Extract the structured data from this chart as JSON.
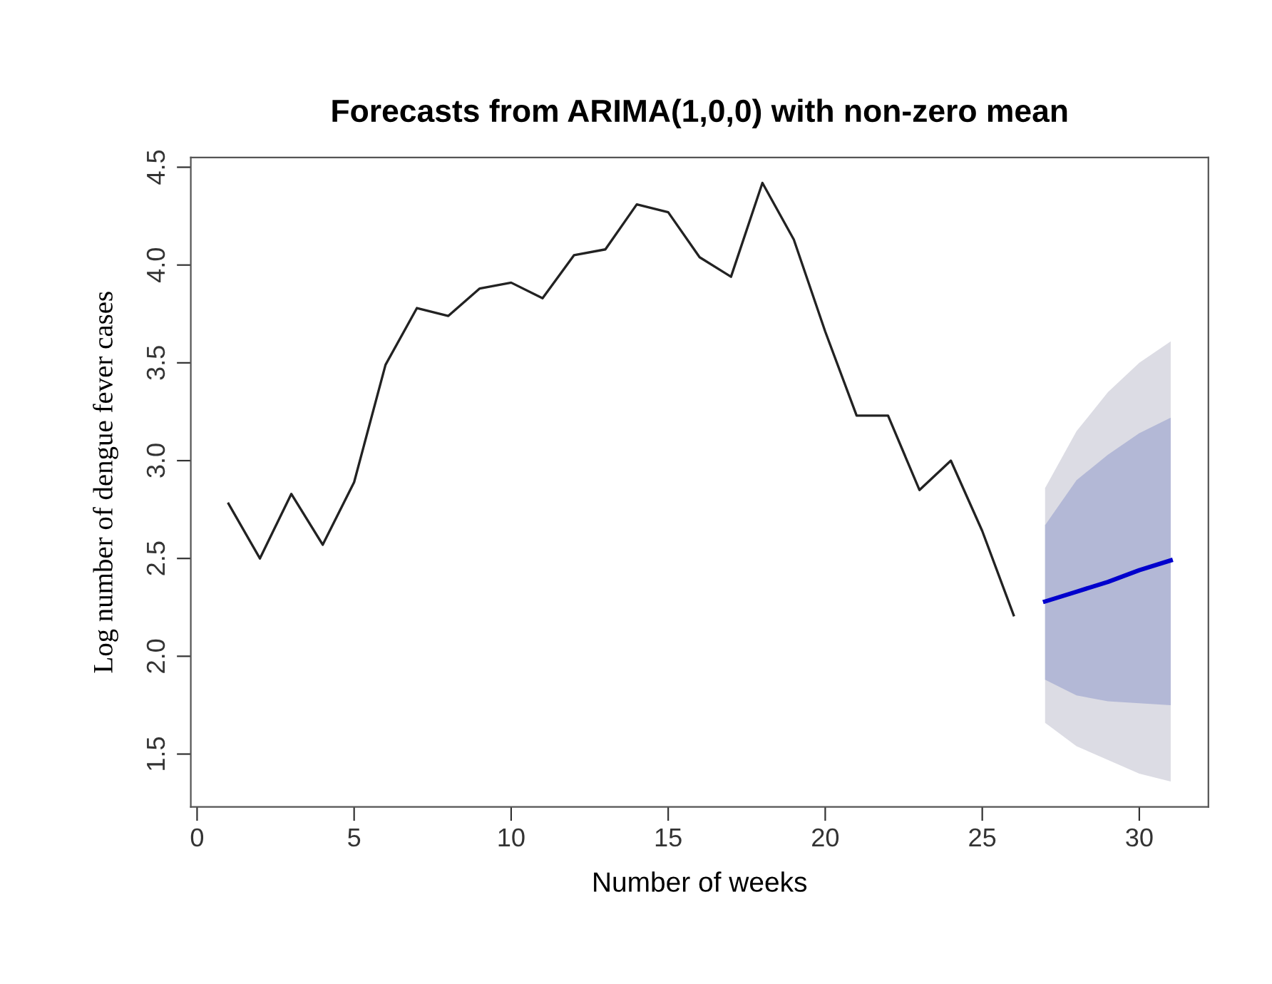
{
  "chart_data": {
    "type": "line",
    "title": "Forecasts from ARIMA(1,0,0) with non-zero mean",
    "xlabel": "Number of weeks",
    "ylabel": "Log number of dengue fever cases",
    "xlim": [
      -0.2,
      32.2
    ],
    "xticks": [
      0,
      5,
      10,
      15,
      20,
      25,
      30
    ],
    "ylim": [
      1.23,
      4.55
    ],
    "yticks": [
      1.5,
      {
        "value": 2,
        "label": "2.0"
      },
      2.5,
      {
        "value": 3,
        "label": "3.0"
      },
      3.5,
      {
        "value": 4,
        "label": "4.0"
      },
      4.5
    ],
    "grid": false,
    "legend": false,
    "series": [
      {
        "color": "#222222",
        "x": [
          1,
          2,
          3,
          4,
          5,
          6,
          7,
          8,
          9,
          10,
          11,
          12,
          13,
          14,
          15,
          16,
          17,
          18,
          19,
          20,
          21,
          22,
          23,
          24,
          25,
          26
        ],
        "values": [
          2.78,
          2.5,
          2.83,
          2.57,
          2.89,
          3.49,
          3.78,
          3.74,
          3.88,
          3.91,
          3.83,
          4.05,
          4.08,
          4.31,
          4.27,
          4.04,
          3.94,
          4.42,
          4.13,
          3.66,
          3.23,
          3.23,
          2.85,
          3.0,
          2.64,
          2.21
        ]
      },
      {
        "color": "#dcdce4",
        "x": [
          27,
          28,
          29,
          30,
          31
        ],
        "values": [
          null,
          null,
          null,
          null,
          null
        ],
        "lower": [
          1.66,
          1.54,
          1.47,
          1.4,
          1.36
        ],
        "upper": [
          2.86,
          3.15,
          3.35,
          3.5,
          3.61
        ]
      },
      {
        "color": "#b3b8d6",
        "x": [
          27,
          28,
          29,
          30,
          31
        ],
        "values": [
          null,
          null,
          null,
          null,
          null
        ],
        "lower": [
          1.88,
          1.8,
          1.77,
          1.76,
          1.75
        ],
        "upper": [
          2.67,
          2.9,
          3.03,
          3.14,
          3.22
        ]
      },
      {
        "color": "#0000cd",
        "x": [
          27,
          28,
          29,
          30,
          31
        ],
        "values": [
          2.28,
          2.33,
          2.38,
          2.44,
          2.49
        ]
      }
    ]
  }
}
